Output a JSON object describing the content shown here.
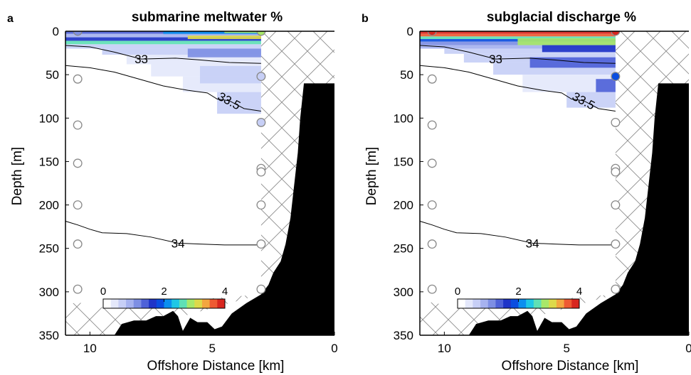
{
  "chart_data": [
    {
      "panel_label": "a",
      "type": "contour",
      "title": "submarine meltwater %",
      "xlabel": "Offshore Distance [km]",
      "ylabel": "Depth [m]",
      "xlim": [
        11,
        0
      ],
      "ylim": [
        350,
        0
      ],
      "xticks": [
        10,
        5,
        0
      ],
      "yticks": [
        0,
        50,
        100,
        150,
        200,
        250,
        300,
        350
      ],
      "colorbar": {
        "min": 0,
        "max": 4,
        "ticks": [
          0,
          2,
          4
        ]
      },
      "contour_labels": [
        {
          "text": "33",
          "x": 7.9,
          "y": 32
        },
        {
          "text": "33.5",
          "x": 4.3,
          "y": 80
        },
        {
          "text": "34",
          "x": 6.4,
          "y": 244
        }
      ],
      "isohalines": [
        {
          "value": 33,
          "points": [
            [
              11.2,
              16
            ],
            [
              10,
              18
            ],
            [
              9,
              24
            ],
            [
              7.9,
              32
            ],
            [
              6.5,
              31
            ],
            [
              5.5,
              33
            ],
            [
              4.3,
              36
            ],
            [
              3,
              37
            ]
          ]
        },
        {
          "value": 33.5,
          "points": [
            [
              11.2,
              39
            ],
            [
              10,
              42
            ],
            [
              9,
              47
            ],
            [
              8,
              55
            ],
            [
              7,
              63
            ],
            [
              6,
              68
            ],
            [
              5.2,
              71
            ],
            [
              4.8,
              78
            ],
            [
              4.3,
              80
            ],
            [
              3.7,
              89
            ],
            [
              3,
              92
            ]
          ]
        },
        {
          "value": 34,
          "points": [
            [
              11.2,
              217
            ],
            [
              10.5,
              223
            ],
            [
              10,
              228
            ],
            [
              9.5,
              232
            ],
            [
              8.5,
              233
            ],
            [
              7.5,
              237
            ],
            [
              6.4,
              244
            ],
            [
              5.5,
              245
            ],
            [
              4.5,
              246
            ],
            [
              3.5,
              246
            ],
            [
              3,
              246
            ]
          ]
        }
      ],
      "stations": [
        {
          "x": 10.5,
          "depth": 0,
          "value": 1.0
        },
        {
          "x": 10.5,
          "depth": 55,
          "value": null
        },
        {
          "x": 10.5,
          "depth": 108,
          "value": null
        },
        {
          "x": 10.5,
          "depth": 152,
          "value": null
        },
        {
          "x": 10.5,
          "depth": 200,
          "value": null
        },
        {
          "x": 10.5,
          "depth": 245,
          "value": null
        },
        {
          "x": 10.5,
          "depth": 297,
          "value": null
        },
        {
          "x": 3.0,
          "depth": 0,
          "value": 3.0
        },
        {
          "x": 3.0,
          "depth": 52,
          "value": 0.6
        },
        {
          "x": 3.0,
          "depth": 105,
          "value": 0.4
        },
        {
          "x": 3.0,
          "depth": 158,
          "value": null
        },
        {
          "x": 3.0,
          "depth": 162,
          "value": null
        },
        {
          "x": 3.0,
          "depth": 200,
          "value": null
        },
        {
          "x": 3.0,
          "depth": 245,
          "value": null
        },
        {
          "x": 3.0,
          "depth": 297,
          "value": null
        }
      ]
    },
    {
      "panel_label": "b",
      "type": "contour",
      "title": "subglacial discharge %",
      "xlabel": "Offshore Distance [km]",
      "ylabel": "Depth [m]",
      "xlim": [
        11,
        0
      ],
      "ylim": [
        350,
        0
      ],
      "xticks": [
        10,
        5,
        0
      ],
      "yticks": [
        0,
        50,
        100,
        150,
        200,
        250,
        300,
        350
      ],
      "colorbar": {
        "min": 0,
        "max": 4,
        "ticks": [
          0,
          2,
          4
        ]
      },
      "contour_labels": [
        {
          "text": "33",
          "x": 7.9,
          "y": 32
        },
        {
          "text": "33.5",
          "x": 4.3,
          "y": 80
        },
        {
          "text": "34",
          "x": 6.4,
          "y": 244
        }
      ],
      "isohalines": [
        {
          "value": 33,
          "points": [
            [
              11.2,
              16
            ],
            [
              10,
              18
            ],
            [
              9,
              24
            ],
            [
              7.9,
              32
            ],
            [
              6.5,
              31
            ],
            [
              5.5,
              33
            ],
            [
              4.3,
              36
            ],
            [
              3,
              37
            ]
          ]
        },
        {
          "value": 33.5,
          "points": [
            [
              11.2,
              39
            ],
            [
              10,
              42
            ],
            [
              9,
              47
            ],
            [
              8,
              55
            ],
            [
              7,
              63
            ],
            [
              6,
              68
            ],
            [
              5.2,
              71
            ],
            [
              4.8,
              78
            ],
            [
              4.3,
              80
            ],
            [
              3.7,
              89
            ],
            [
              3,
              92
            ]
          ]
        },
        {
          "value": 34,
          "points": [
            [
              11.2,
              217
            ],
            [
              10.5,
              223
            ],
            [
              10,
              228
            ],
            [
              9.5,
              232
            ],
            [
              8.5,
              233
            ],
            [
              7.5,
              237
            ],
            [
              6.4,
              244
            ],
            [
              5.5,
              245
            ],
            [
              4.5,
              246
            ],
            [
              3.5,
              246
            ],
            [
              3,
              246
            ]
          ]
        }
      ],
      "stations": [
        {
          "x": 10.5,
          "depth": 0,
          "value": 4.0
        },
        {
          "x": 10.5,
          "depth": 55,
          "value": null
        },
        {
          "x": 10.5,
          "depth": 108,
          "value": null
        },
        {
          "x": 10.5,
          "depth": 152,
          "value": null
        },
        {
          "x": 10.5,
          "depth": 200,
          "value": null
        },
        {
          "x": 10.5,
          "depth": 245,
          "value": null
        },
        {
          "x": 10.5,
          "depth": 297,
          "value": null
        },
        {
          "x": 3.0,
          "depth": 0,
          "value": 4.0
        },
        {
          "x": 3.0,
          "depth": 52,
          "value": 1.8
        },
        {
          "x": 3.0,
          "depth": 105,
          "value": null
        },
        {
          "x": 3.0,
          "depth": 158,
          "value": null
        },
        {
          "x": 3.0,
          "depth": 162,
          "value": null
        },
        {
          "x": 3.0,
          "depth": 200,
          "value": null
        },
        {
          "x": 3.0,
          "depth": 245,
          "value": null
        },
        {
          "x": 3.0,
          "depth": 297,
          "value": null
        }
      ]
    }
  ],
  "bathymetry": {
    "points": [
      [
        9.0,
        350
      ],
      [
        8.7,
        337
      ],
      [
        8.2,
        333
      ],
      [
        7.7,
        333
      ],
      [
        7.3,
        328
      ],
      [
        7.0,
        328
      ],
      [
        6.6,
        322
      ],
      [
        6.4,
        328
      ],
      [
        6.2,
        345
      ],
      [
        5.9,
        330
      ],
      [
        5.6,
        335
      ],
      [
        5.2,
        335
      ],
      [
        4.9,
        343
      ],
      [
        4.6,
        340
      ],
      [
        4.2,
        325
      ],
      [
        3.6,
        313
      ],
      [
        3.0,
        303
      ],
      [
        2.7,
        292
      ],
      [
        2.5,
        278
      ],
      [
        2.2,
        265
      ],
      [
        2.0,
        245
      ],
      [
        1.8,
        215
      ],
      [
        1.5,
        140
      ],
      [
        1.4,
        100
      ],
      [
        1.25,
        60
      ],
      [
        0,
        60
      ],
      [
        0,
        350
      ]
    ]
  },
  "shelf_hatch_x": 3.0,
  "colorscale": [
    "#ffffff",
    "#e4e8fb",
    "#c7cff6",
    "#a6b2ef",
    "#7e8fe4",
    "#4f62d8",
    "#1f34c8",
    "#0a4de0",
    "#0b8fef",
    "#1fc7e6",
    "#5fe0b5",
    "#a8e86a",
    "#ddd94a",
    "#f3a640",
    "#ee5a32",
    "#d8261f"
  ],
  "colors": {
    "station_edge": "#8a8a8a",
    "land": "#000000",
    "hatch": "#8c8c8c"
  }
}
